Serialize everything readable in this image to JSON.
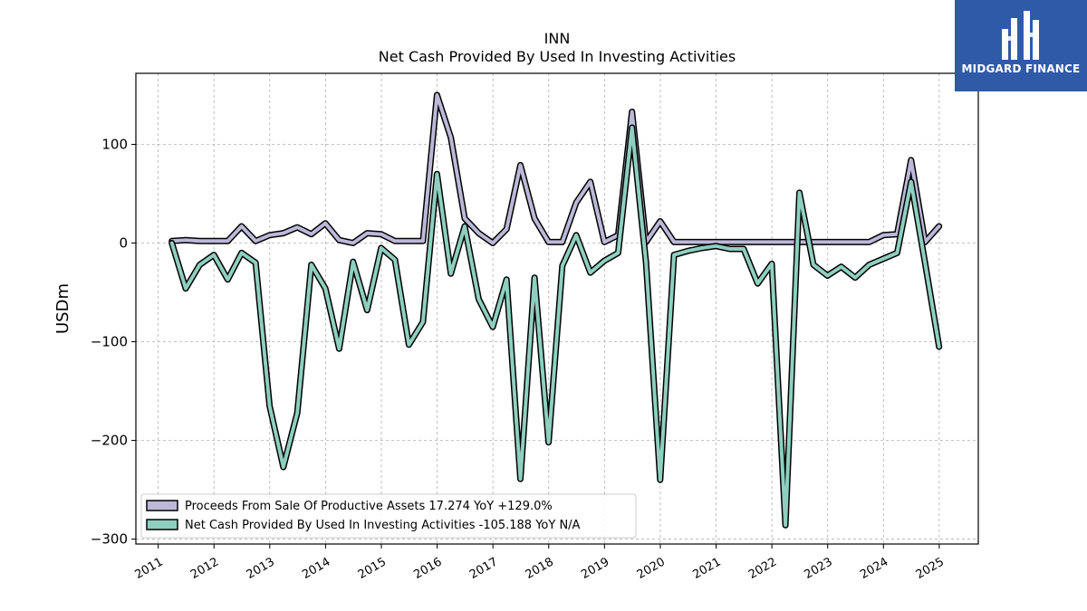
{
  "chart_data": {
    "type": "line",
    "title": "INN",
    "subtitle": "Net Cash Provided By Used In Investing Activities",
    "ylabel": "USDm",
    "xlabel": "",
    "ylim": [
      -305,
      172
    ],
    "xlim": [
      2010.6,
      2025.7
    ],
    "yticks": [
      -300,
      -200,
      -100,
      0,
      100
    ],
    "yticklabels": [
      "−300",
      "−200",
      "−100",
      "0",
      "100"
    ],
    "xticks": [
      2011,
      2012,
      2013,
      2014,
      2015,
      2016,
      2017,
      2018,
      2019,
      2020,
      2021,
      2022,
      2023,
      2024,
      2025
    ],
    "grid": true,
    "legend_position": "lower-left",
    "series": [
      {
        "name": "Proceeds From Sale Of Productive Assets",
        "legend": "Proceeds From Sale Of Productive Assets  17.274 YoY +129.0%",
        "color": "#bcb8d8",
        "points": [
          [
            "2011-03-31",
            2
          ],
          [
            "2011-06-30",
            3
          ],
          [
            "2011-09-30",
            2
          ],
          [
            "2011-12-31",
            2
          ],
          [
            "2012-03-31",
            2
          ],
          [
            "2012-06-30",
            17
          ],
          [
            "2012-09-30",
            2
          ],
          [
            "2012-12-31",
            8
          ],
          [
            "2013-03-31",
            10
          ],
          [
            "2013-06-30",
            16
          ],
          [
            "2013-09-30",
            9
          ],
          [
            "2013-12-31",
            20
          ],
          [
            "2014-03-31",
            3
          ],
          [
            "2014-06-30",
            0
          ],
          [
            "2014-09-30",
            10
          ],
          [
            "2014-12-31",
            9
          ],
          [
            "2015-03-31",
            2
          ],
          [
            "2015-06-30",
            2
          ],
          [
            "2015-09-30",
            2
          ],
          [
            "2015-12-31",
            150
          ],
          [
            "2016-03-31",
            107
          ],
          [
            "2016-06-30",
            25
          ],
          [
            "2016-09-30",
            10
          ],
          [
            "2016-12-31",
            0
          ],
          [
            "2017-03-31",
            14
          ],
          [
            "2017-06-30",
            79
          ],
          [
            "2017-09-30",
            25
          ],
          [
            "2017-12-31",
            1
          ],
          [
            "2018-03-31",
            1
          ],
          [
            "2018-06-30",
            41
          ],
          [
            "2018-09-30",
            62
          ],
          [
            "2018-12-31",
            1
          ],
          [
            "2019-03-31",
            8
          ],
          [
            "2019-06-30",
            133
          ],
          [
            "2019-09-30",
            1
          ],
          [
            "2019-12-31",
            22
          ],
          [
            "2020-03-31",
            1
          ],
          [
            "2020-06-30",
            1
          ],
          [
            "2020-09-30",
            1
          ],
          [
            "2020-12-31",
            1
          ],
          [
            "2021-03-31",
            1
          ],
          [
            "2021-06-30",
            1
          ],
          [
            "2021-09-30",
            1
          ],
          [
            "2021-12-31",
            1
          ],
          [
            "2022-03-31",
            1
          ],
          [
            "2022-06-30",
            1
          ],
          [
            "2022-09-30",
            1
          ],
          [
            "2022-12-31",
            1
          ],
          [
            "2023-03-31",
            1
          ],
          [
            "2023-06-30",
            1
          ],
          [
            "2023-09-30",
            1
          ],
          [
            "2023-12-31",
            8
          ],
          [
            "2024-03-31",
            9
          ],
          [
            "2024-06-30",
            84
          ],
          [
            "2024-09-30",
            1
          ],
          [
            "2024-12-31",
            17
          ]
        ]
      },
      {
        "name": "Net Cash Provided By Used In Investing Activities",
        "legend": "Net Cash Provided By Used In Investing Activities  -105.188 YoY N/A",
        "color": "#8ecfbf",
        "points": [
          [
            "2011-03-31",
            0
          ],
          [
            "2011-06-30",
            -46
          ],
          [
            "2011-09-30",
            -22
          ],
          [
            "2011-12-31",
            -12
          ],
          [
            "2012-03-31",
            -37
          ],
          [
            "2012-06-30",
            -10
          ],
          [
            "2012-09-30",
            -20
          ],
          [
            "2012-12-31",
            -165
          ],
          [
            "2013-03-31",
            -227
          ],
          [
            "2013-06-30",
            -172
          ],
          [
            "2013-09-30",
            -22
          ],
          [
            "2013-12-31",
            -46
          ],
          [
            "2014-03-31",
            -107
          ],
          [
            "2014-06-30",
            -19
          ],
          [
            "2014-09-30",
            -68
          ],
          [
            "2014-12-31",
            -5
          ],
          [
            "2015-03-31",
            -17
          ],
          [
            "2015-06-30",
            -103
          ],
          [
            "2015-09-30",
            -80
          ],
          [
            "2015-12-31",
            70
          ],
          [
            "2016-03-31",
            -31
          ],
          [
            "2016-06-30",
            17
          ],
          [
            "2016-09-30",
            -57
          ],
          [
            "2016-12-31",
            -85
          ],
          [
            "2017-03-31",
            -37
          ],
          [
            "2017-06-30",
            -239
          ],
          [
            "2017-09-30",
            -35
          ],
          [
            "2017-12-31",
            -202
          ],
          [
            "2018-03-31",
            -23
          ],
          [
            "2018-06-30",
            8
          ],
          [
            "2018-09-30",
            -30
          ],
          [
            "2018-12-31",
            -18
          ],
          [
            "2019-03-31",
            -10
          ],
          [
            "2019-06-30",
            117
          ],
          [
            "2019-09-30",
            -20
          ],
          [
            "2019-12-31",
            -240
          ],
          [
            "2020-03-31",
            -12
          ],
          [
            "2020-06-30",
            -8
          ],
          [
            "2020-09-30",
            -5
          ],
          [
            "2020-12-31",
            -3
          ],
          [
            "2021-03-31",
            -6
          ],
          [
            "2021-06-30",
            -6
          ],
          [
            "2021-09-30",
            -41
          ],
          [
            "2021-12-31",
            -21
          ],
          [
            "2022-03-31",
            -286
          ],
          [
            "2022-06-30",
            51
          ],
          [
            "2022-09-30",
            -22
          ],
          [
            "2022-12-31",
            -33
          ],
          [
            "2023-03-31",
            -24
          ],
          [
            "2023-06-30",
            -35
          ],
          [
            "2023-09-30",
            -22
          ],
          [
            "2023-12-31",
            -16
          ],
          [
            "2024-03-31",
            -10
          ],
          [
            "2024-06-30",
            62
          ],
          [
            "2024-09-30",
            -20
          ],
          [
            "2024-12-31",
            -105
          ]
        ]
      }
    ]
  },
  "branding": {
    "logo_text": "MIDGARD FINANCE",
    "logo_color": "#2f5aa8"
  }
}
